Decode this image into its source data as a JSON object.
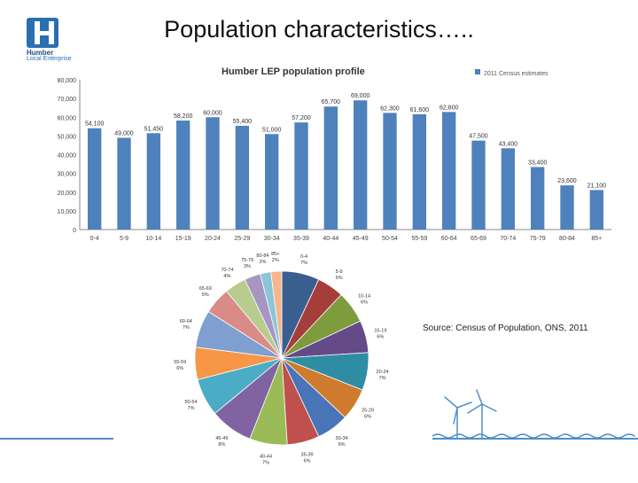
{
  "slide": {
    "title": "Population characteristics…..",
    "source": "Source: Census of Population, ONS, 2011",
    "logo": {
      "name": "Humber",
      "subtitle": "Local Enterprise"
    }
  },
  "colors": {
    "bar": "#4f81bd",
    "accent": "#4f8fc8",
    "logo": "#2a6fb0"
  },
  "chart_data": [
    {
      "type": "bar",
      "title": "Humber LEP population profile",
      "legend": {
        "position": "top-right",
        "label": "2011 Census estimates"
      },
      "categories": [
        "0-4",
        "5-9",
        "10-14",
        "15-19",
        "20-24",
        "25-29",
        "30-34",
        "35-39",
        "40-44",
        "45-49",
        "50-54",
        "55-59",
        "60-64",
        "65-69",
        "70-74",
        "75-79",
        "80-84",
        "85+"
      ],
      "series": [
        {
          "name": "2011 Census estimates",
          "values": [
            54100,
            49000,
            51450,
            58200,
            60000,
            55400,
            51000,
            57200,
            65700,
            69000,
            62300,
            61600,
            62800,
            47500,
            43400,
            33400,
            23600,
            21100
          ]
        }
      ],
      "data_labels": [
        "54,100",
        "49,000",
        "51,450",
        "58,200",
        "60,000",
        "55,400",
        "51,000",
        "57,200",
        "65,700",
        "69,000",
        "62,300",
        "61,600",
        "62,800",
        "47,500",
        "43,400",
        "33,400",
        "23,600",
        "21,100"
      ],
      "y_ticks": [
        "0",
        "10,000",
        "20,000",
        "30,000",
        "40,000",
        "50,000",
        "60,000",
        "70,000",
        "80,000"
      ],
      "ylim": [
        0,
        80000
      ],
      "grid": false
    },
    {
      "type": "pie",
      "slices": [
        {
          "label": "0-4",
          "pct": "7%",
          "value": 7,
          "color": "#3a5f8f"
        },
        {
          "label": "5-9",
          "pct": "5%",
          "value": 5,
          "color": "#a43e3b"
        },
        {
          "label": "10-14",
          "pct": "6%",
          "value": 6,
          "color": "#7e9b3d"
        },
        {
          "label": "15-19",
          "pct": "6%",
          "value": 6,
          "color": "#654a8a"
        },
        {
          "label": "20-24",
          "pct": "7%",
          "value": 7,
          "color": "#2f8da3"
        },
        {
          "label": "25-29",
          "pct": "6%",
          "value": 6,
          "color": "#d07a2e"
        },
        {
          "label": "30-34",
          "pct": "6%",
          "value": 6,
          "color": "#4a74b8"
        },
        {
          "label": "35-39",
          "pct": "6%",
          "value": 6,
          "color": "#c0504d"
        },
        {
          "label": "40-44",
          "pct": "7%",
          "value": 7,
          "color": "#9bbb59"
        },
        {
          "label": "45-49",
          "pct": "8%",
          "value": 8,
          "color": "#8064a2"
        },
        {
          "label": "50-54",
          "pct": "7%",
          "value": 7,
          "color": "#4bacc6"
        },
        {
          "label": "55-59",
          "pct": "6%",
          "value": 6,
          "color": "#f79646"
        },
        {
          "label": "60-64",
          "pct": "7%",
          "value": 7,
          "color": "#7f9fd0"
        },
        {
          "label": "65-69",
          "pct": "5%",
          "value": 5,
          "color": "#d98b88"
        },
        {
          "label": "70-74",
          "pct": "4%",
          "value": 4,
          "color": "#b7cc8e"
        },
        {
          "label": "75-79",
          "pct": "3%",
          "value": 3,
          "color": "#a896c2"
        },
        {
          "label": "80-84",
          "pct": "2%",
          "value": 2,
          "color": "#8cc6d6"
        },
        {
          "label": "85+",
          "pct": "2%",
          "value": 2,
          "color": "#f7b58a"
        }
      ]
    }
  ]
}
